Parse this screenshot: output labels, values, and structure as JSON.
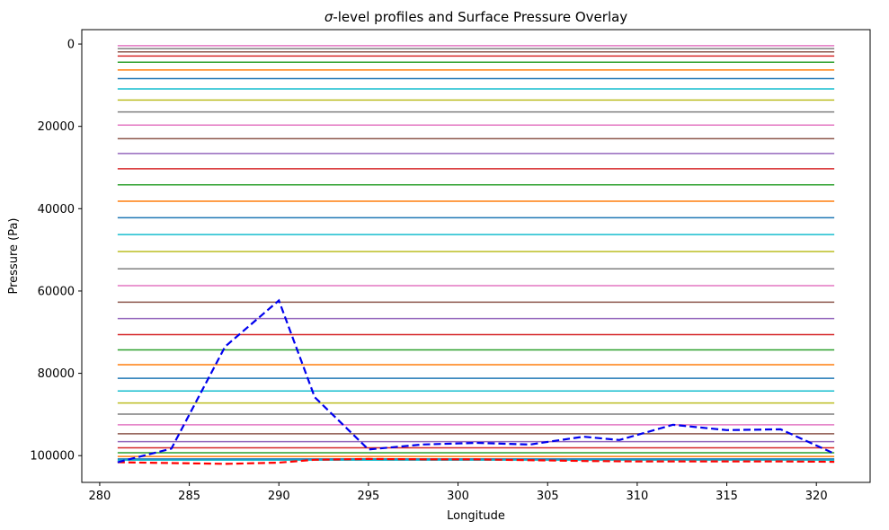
{
  "chart_data": {
    "type": "line",
    "title_prefix": "σ",
    "title_rest": "-level profiles and Surface Pressure Overlay",
    "xlabel": "Longitude",
    "ylabel": "Pressure (Pa)",
    "xlim": [
      279.0,
      323.0
    ],
    "ylim": [
      106500,
      -3500
    ],
    "y_inverted": true,
    "x_ticks": [
      280,
      285,
      290,
      295,
      300,
      305,
      310,
      315,
      320
    ],
    "y_ticks": [
      0,
      20000,
      40000,
      60000,
      80000,
      100000
    ],
    "grid": false,
    "legend": "none",
    "level_line_x_range": [
      281,
      321
    ],
    "sigma_levels": [
      {
        "value": 400,
        "color": "#e377c2"
      },
      {
        "value": 1100,
        "color": "#7f7f7f"
      },
      {
        "value": 1900,
        "color": "#8c564b"
      },
      {
        "value": 2900,
        "color": "#d62728"
      },
      {
        "value": 4400,
        "color": "#2ca02c"
      },
      {
        "value": 6300,
        "color": "#ff7f0e"
      },
      {
        "value": 8400,
        "color": "#1f77b4"
      },
      {
        "value": 10900,
        "color": "#17becf"
      },
      {
        "value": 13600,
        "color": "#bcbd22"
      },
      {
        "value": 16500,
        "color": "#7f7f7f"
      },
      {
        "value": 19700,
        "color": "#e377c2"
      },
      {
        "value": 23000,
        "color": "#8c564b"
      },
      {
        "value": 26600,
        "color": "#9467bd"
      },
      {
        "value": 30300,
        "color": "#d62728"
      },
      {
        "value": 34200,
        "color": "#2ca02c"
      },
      {
        "value": 38200,
        "color": "#ff7f0e"
      },
      {
        "value": 42200,
        "color": "#1f77b4"
      },
      {
        "value": 46300,
        "color": "#17becf"
      },
      {
        "value": 50400,
        "color": "#bcbd22"
      },
      {
        "value": 54600,
        "color": "#7f7f7f"
      },
      {
        "value": 58700,
        "color": "#e377c2"
      },
      {
        "value": 62700,
        "color": "#8c564b"
      },
      {
        "value": 66700,
        "color": "#9467bd"
      },
      {
        "value": 70600,
        "color": "#d62728"
      },
      {
        "value": 74300,
        "color": "#2ca02c"
      },
      {
        "value": 77900,
        "color": "#ff7f0e"
      },
      {
        "value": 81200,
        "color": "#1f77b4"
      },
      {
        "value": 84300,
        "color": "#17becf"
      },
      {
        "value": 87200,
        "color": "#bcbd22"
      },
      {
        "value": 89900,
        "color": "#7f7f7f"
      },
      {
        "value": 92500,
        "color": "#e377c2"
      },
      {
        "value": 94700,
        "color": "#8c564b"
      },
      {
        "value": 96600,
        "color": "#9467bd"
      },
      {
        "value": 98100,
        "color": "#d62728"
      },
      {
        "value": 99300,
        "color": "#2ca02c"
      },
      {
        "value": 100200,
        "color": "#ff7f0e"
      },
      {
        "value": 100800,
        "color": "#1f77b4"
      },
      {
        "value": 101100,
        "color": "#17becf"
      }
    ],
    "series": [
      {
        "color": "#ff0000",
        "style": "dashed",
        "x": [
          281,
          284,
          287,
          290,
          292,
          295,
          298,
          301,
          304,
          307,
          310,
          312,
          315,
          318,
          321
        ],
        "y": [
          101600,
          101800,
          102000,
          101700,
          101000,
          100800,
          100900,
          100900,
          101100,
          101300,
          101400,
          101400,
          101400,
          101400,
          101500
        ]
      },
      {
        "color": "#0000ee",
        "style": "dashed",
        "x": [
          281,
          284,
          287,
          290,
          292,
          295,
          298,
          301,
          304,
          307,
          309,
          312,
          315,
          318,
          321
        ],
        "y": [
          101600,
          98300,
          73500,
          62300,
          85800,
          98500,
          97300,
          96900,
          97300,
          95400,
          96200,
          92500,
          93800,
          93600,
          99500
        ]
      }
    ]
  }
}
